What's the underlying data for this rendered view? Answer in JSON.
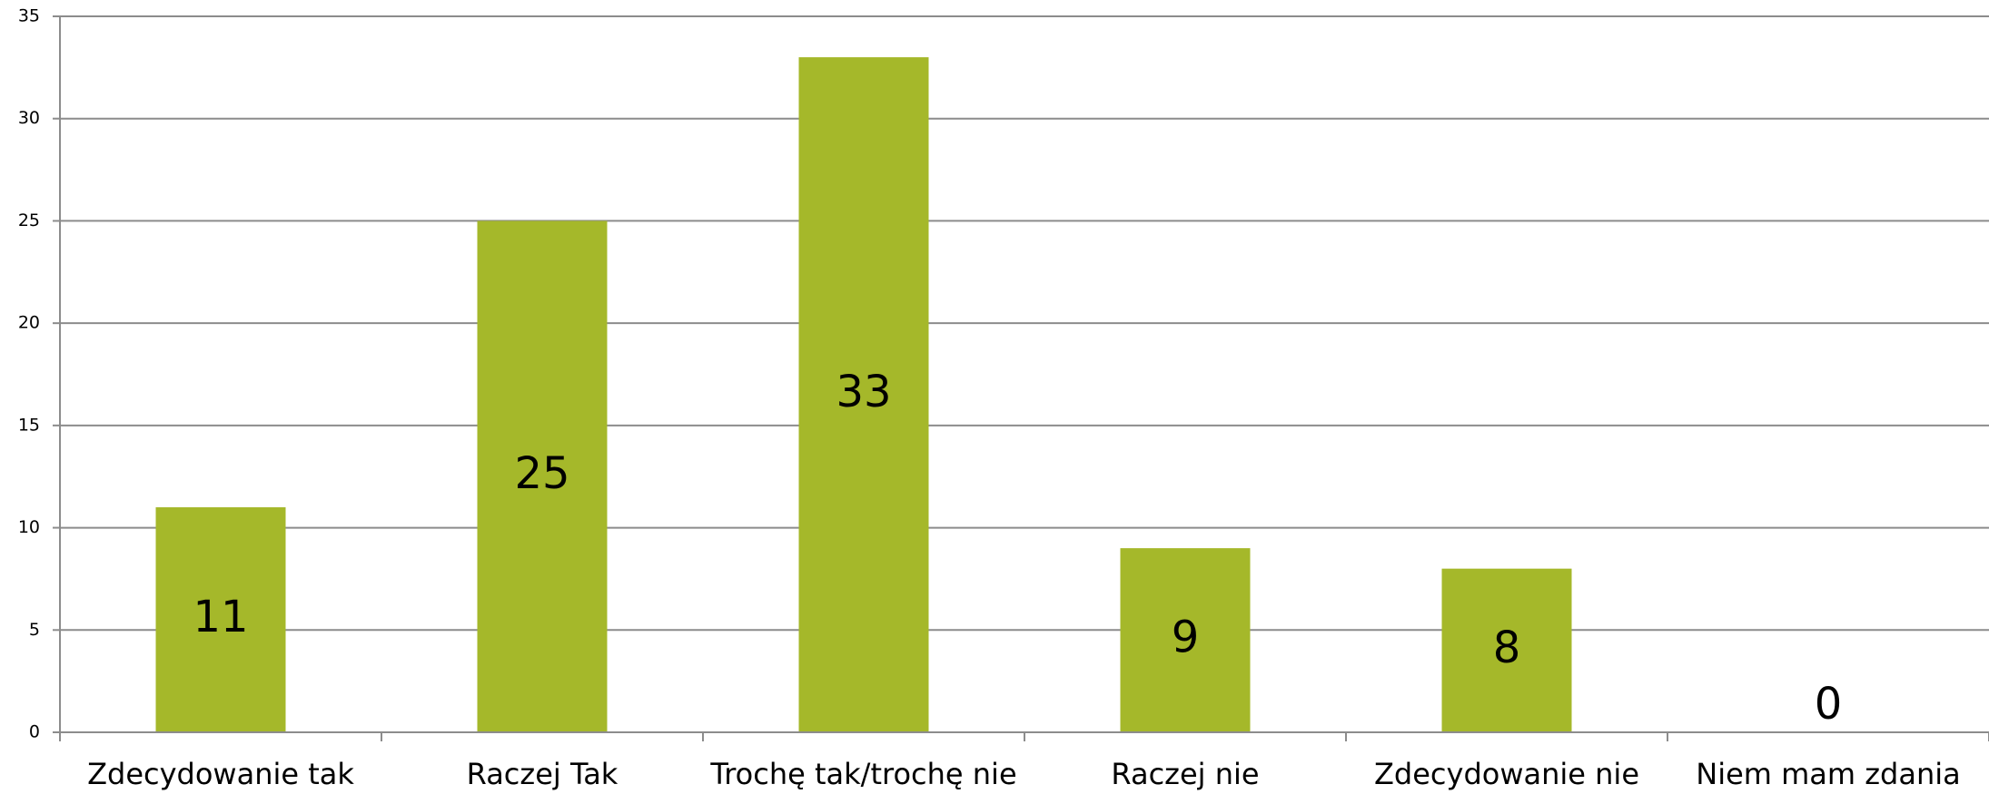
{
  "chart_data": {
    "type": "bar",
    "categories": [
      "Zdecydowanie tak",
      "Raczej Tak",
      "Trochę tak/trochę nie",
      "Raczej nie",
      "Zdecydowanie nie",
      "Niem mam zdania"
    ],
    "values": [
      11,
      25,
      33,
      9,
      8,
      0
    ],
    "color": "#a5b82a",
    "ylim": [
      0,
      35
    ],
    "yticks": [
      0,
      5,
      10,
      15,
      20,
      25,
      30,
      35
    ],
    "grid": true
  }
}
